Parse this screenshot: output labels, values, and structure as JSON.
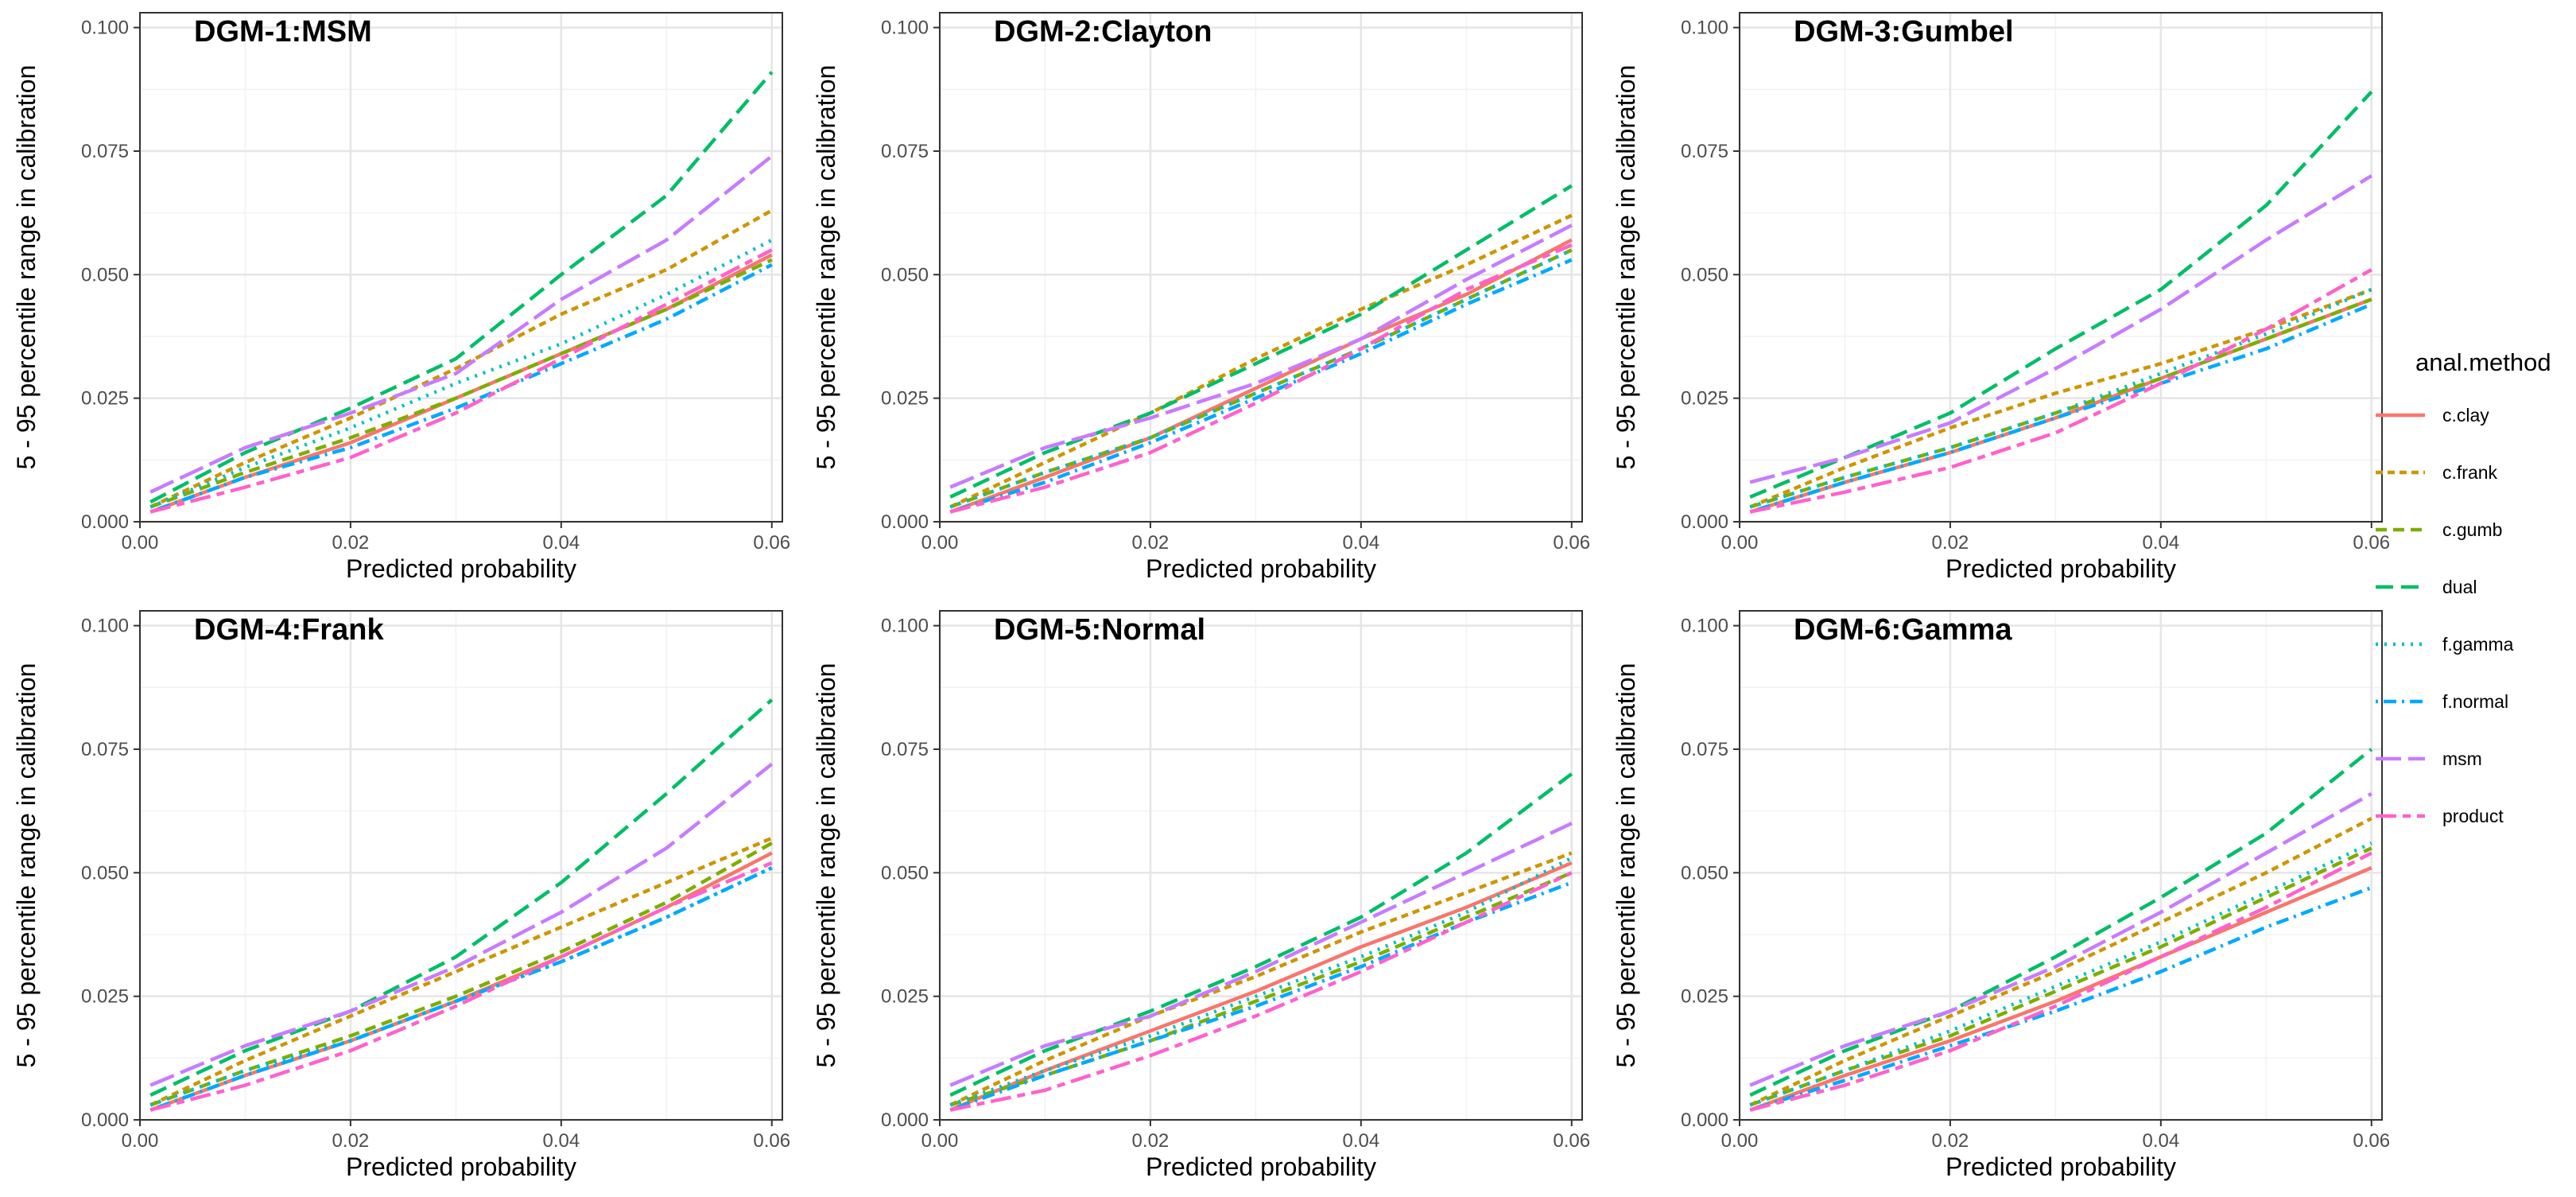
{
  "chart_data": {
    "type": "line",
    "layout": "facet-grid-2x3",
    "grid": true,
    "legend_position": "right",
    "legend": {
      "title": "anal.method",
      "entries": [
        "c.clay",
        "c.frank",
        "c.gumb",
        "dual",
        "f.gamma",
        "f.normal",
        "msm",
        "product"
      ]
    },
    "styles": {
      "c.clay": {
        "color": "#F8766D",
        "dash": "solid"
      },
      "c.frank": {
        "color": "#CD9600",
        "dash": "dotted-dash-short"
      },
      "c.gumb": {
        "color": "#7CAE00",
        "dash": "dashed"
      },
      "dual": {
        "color": "#00BE67",
        "dash": "long-dashed"
      },
      "f.gamma": {
        "color": "#00BFC4",
        "dash": "dotted"
      },
      "f.normal": {
        "color": "#00A9FF",
        "dash": "dot-dash"
      },
      "msm": {
        "color": "#C77CFF",
        "dash": "long-dash"
      },
      "product": {
        "color": "#FF61CC",
        "dash": "two-dash"
      }
    },
    "xlabel": "Predicted probability",
    "ylabel": "5 - 95 percentile range in calibration",
    "xlim": [
      0.0,
      0.061
    ],
    "ylim": [
      0.0,
      0.103
    ],
    "xticks": [
      "0.00",
      "0.02",
      "0.04",
      "0.06"
    ],
    "xtick_values": [
      0.0,
      0.02,
      0.04,
      0.06
    ],
    "yticks": [
      "0.000",
      "0.025",
      "0.050",
      "0.075",
      "0.100"
    ],
    "ytick_values": [
      0.0,
      0.025,
      0.05,
      0.075,
      0.1
    ],
    "x": [
      0.001,
      0.01,
      0.02,
      0.03,
      0.04,
      0.05,
      0.06
    ],
    "panels": [
      {
        "title": "DGM-1:MSM",
        "series": [
          {
            "name": "c.clay",
            "values": [
              0.002,
              0.009,
              0.016,
              0.025,
              0.034,
              0.043,
              0.054
            ]
          },
          {
            "name": "c.frank",
            "values": [
              0.003,
              0.012,
              0.021,
              0.031,
              0.042,
              0.051,
              0.063
            ]
          },
          {
            "name": "c.gumb",
            "values": [
              0.003,
              0.01,
              0.017,
              0.025,
              0.034,
              0.043,
              0.053
            ]
          },
          {
            "name": "dual",
            "values": [
              0.004,
              0.014,
              0.023,
              0.033,
              0.05,
              0.066,
              0.091
            ]
          },
          {
            "name": "f.gamma",
            "values": [
              0.003,
              0.011,
              0.019,
              0.028,
              0.036,
              0.046,
              0.057
            ]
          },
          {
            "name": "f.normal",
            "values": [
              0.002,
              0.009,
              0.015,
              0.023,
              0.032,
              0.041,
              0.052
            ]
          },
          {
            "name": "msm",
            "values": [
              0.006,
              0.015,
              0.022,
              0.03,
              0.045,
              0.057,
              0.074
            ]
          },
          {
            "name": "product",
            "values": [
              0.002,
              0.007,
              0.013,
              0.022,
              0.033,
              0.044,
              0.055
            ]
          }
        ]
      },
      {
        "title": "DGM-2:Clayton",
        "series": [
          {
            "name": "c.clay",
            "values": [
              0.002,
              0.009,
              0.017,
              0.027,
              0.037,
              0.046,
              0.057
            ]
          },
          {
            "name": "c.frank",
            "values": [
              0.003,
              0.012,
              0.022,
              0.033,
              0.043,
              0.052,
              0.062
            ]
          },
          {
            "name": "c.gumb",
            "values": [
              0.003,
              0.01,
              0.017,
              0.026,
              0.035,
              0.045,
              0.055
            ]
          },
          {
            "name": "dual",
            "values": [
              0.005,
              0.014,
              0.022,
              0.032,
              0.042,
              0.055,
              0.068
            ]
          },
          {
            "name": "f.gamma",
            "values": [
              0.003,
              0.01,
              0.017,
              0.026,
              0.035,
              0.045,
              0.055
            ]
          },
          {
            "name": "f.normal",
            "values": [
              0.002,
              0.008,
              0.016,
              0.025,
              0.034,
              0.044,
              0.053
            ]
          },
          {
            "name": "msm",
            "values": [
              0.007,
              0.015,
              0.021,
              0.028,
              0.037,
              0.049,
              0.06
            ]
          },
          {
            "name": "product",
            "values": [
              0.002,
              0.007,
              0.014,
              0.024,
              0.035,
              0.047,
              0.056
            ]
          }
        ]
      },
      {
        "title": "DGM-3:Gumbel",
        "series": [
          {
            "name": "c.clay",
            "values": [
              0.002,
              0.008,
              0.014,
              0.021,
              0.029,
              0.037,
              0.045
            ]
          },
          {
            "name": "c.frank",
            "values": [
              0.003,
              0.011,
              0.019,
              0.026,
              0.032,
              0.039,
              0.047
            ]
          },
          {
            "name": "c.gumb",
            "values": [
              0.003,
              0.009,
              0.015,
              0.022,
              0.029,
              0.037,
              0.045
            ]
          },
          {
            "name": "dual",
            "values": [
              0.005,
              0.013,
              0.022,
              0.035,
              0.047,
              0.064,
              0.087
            ]
          },
          {
            "name": "f.gamma",
            "values": [
              0.003,
              0.009,
              0.015,
              0.022,
              0.03,
              0.038,
              0.047
            ]
          },
          {
            "name": "f.normal",
            "values": [
              0.002,
              0.008,
              0.014,
              0.021,
              0.028,
              0.035,
              0.044
            ]
          },
          {
            "name": "msm",
            "values": [
              0.008,
              0.013,
              0.02,
              0.031,
              0.043,
              0.057,
              0.07
            ]
          },
          {
            "name": "product",
            "values": [
              0.002,
              0.006,
              0.011,
              0.018,
              0.028,
              0.039,
              0.051
            ]
          }
        ]
      },
      {
        "title": "DGM-4:Frank",
        "series": [
          {
            "name": "c.clay",
            "values": [
              0.002,
              0.009,
              0.016,
              0.024,
              0.033,
              0.043,
              0.054
            ]
          },
          {
            "name": "c.frank",
            "values": [
              0.003,
              0.012,
              0.021,
              0.03,
              0.039,
              0.048,
              0.057
            ]
          },
          {
            "name": "c.gumb",
            "values": [
              0.003,
              0.01,
              0.017,
              0.025,
              0.034,
              0.044,
              0.056
            ]
          },
          {
            "name": "dual",
            "values": [
              0.005,
              0.014,
              0.022,
              0.033,
              0.048,
              0.066,
              0.085
            ]
          },
          {
            "name": "f.gamma",
            "values": [
              0.003,
              0.01,
              0.016,
              0.024,
              0.032,
              0.041,
              0.051
            ]
          },
          {
            "name": "f.normal",
            "values": [
              0.002,
              0.009,
              0.016,
              0.024,
              0.032,
              0.041,
              0.051
            ]
          },
          {
            "name": "msm",
            "values": [
              0.007,
              0.015,
              0.022,
              0.031,
              0.042,
              0.055,
              0.072
            ]
          },
          {
            "name": "product",
            "values": [
              0.002,
              0.007,
              0.014,
              0.023,
              0.033,
              0.043,
              0.052
            ]
          }
        ]
      },
      {
        "title": "DGM-5:Normal",
        "series": [
          {
            "name": "c.clay",
            "values": [
              0.002,
              0.01,
              0.018,
              0.026,
              0.035,
              0.043,
              0.052
            ]
          },
          {
            "name": "c.frank",
            "values": [
              0.003,
              0.012,
              0.021,
              0.029,
              0.038,
              0.046,
              0.054
            ]
          },
          {
            "name": "c.gumb",
            "values": [
              0.003,
              0.009,
              0.016,
              0.024,
              0.032,
              0.041,
              0.05
            ]
          },
          {
            "name": "dual",
            "values": [
              0.005,
              0.014,
              0.022,
              0.031,
              0.041,
              0.054,
              0.07
            ]
          },
          {
            "name": "f.gamma",
            "values": [
              0.003,
              0.01,
              0.017,
              0.025,
              0.033,
              0.042,
              0.053
            ]
          },
          {
            "name": "f.normal",
            "values": [
              0.002,
              0.009,
              0.016,
              0.023,
              0.031,
              0.04,
              0.048
            ]
          },
          {
            "name": "msm",
            "values": [
              0.007,
              0.015,
              0.021,
              0.03,
              0.04,
              0.05,
              0.06
            ]
          },
          {
            "name": "product",
            "values": [
              0.002,
              0.006,
              0.013,
              0.021,
              0.03,
              0.04,
              0.05
            ]
          }
        ]
      },
      {
        "title": "DGM-6:Gamma",
        "series": [
          {
            "name": "c.clay",
            "values": [
              0.002,
              0.009,
              0.016,
              0.024,
              0.033,
              0.042,
              0.051
            ]
          },
          {
            "name": "c.frank",
            "values": [
              0.003,
              0.012,
              0.021,
              0.03,
              0.04,
              0.05,
              0.061
            ]
          },
          {
            "name": "c.gumb",
            "values": [
              0.003,
              0.01,
              0.017,
              0.026,
              0.035,
              0.045,
              0.055
            ]
          },
          {
            "name": "dual",
            "values": [
              0.005,
              0.014,
              0.022,
              0.033,
              0.045,
              0.058,
              0.075
            ]
          },
          {
            "name": "f.gamma",
            "values": [
              0.003,
              0.01,
              0.018,
              0.027,
              0.036,
              0.046,
              0.056
            ]
          },
          {
            "name": "f.normal",
            "values": [
              0.002,
              0.008,
              0.015,
              0.022,
              0.03,
              0.039,
              0.047
            ]
          },
          {
            "name": "msm",
            "values": [
              0.007,
              0.015,
              0.022,
              0.031,
              0.042,
              0.054,
              0.066
            ]
          },
          {
            "name": "product",
            "values": [
              0.002,
              0.007,
              0.014,
              0.023,
              0.033,
              0.043,
              0.054
            ]
          }
        ]
      }
    ]
  }
}
